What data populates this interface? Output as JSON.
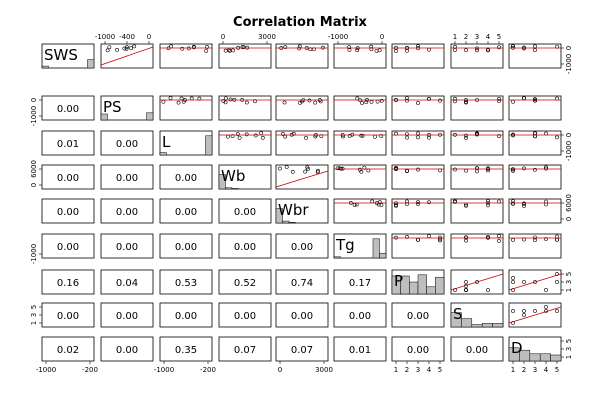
{
  "chart_data": {
    "type": "scatter",
    "title": "Correlation Matrix",
    "variables": [
      "SWS",
      "PS",
      "L",
      "Wb",
      "Wbr",
      "Tg",
      "P",
      "S",
      "D"
    ],
    "lower_panel": "correlation coefficients",
    "upper_panel": "scatterplots with red fitted line",
    "diagonal_panel": "histograms",
    "correlations": [
      [
        null,
        null,
        null,
        null,
        null,
        null,
        null,
        null,
        null
      ],
      [
        "0.00",
        null,
        null,
        null,
        null,
        null,
        null,
        null,
        null
      ],
      [
        "0.01",
        "0.00",
        null,
        null,
        null,
        null,
        null,
        null,
        null
      ],
      [
        "0.00",
        "0.00",
        "0.00",
        null,
        null,
        null,
        null,
        null,
        null
      ],
      [
        "0.00",
        "0.00",
        "0.00",
        "0.00",
        null,
        null,
        null,
        null,
        null
      ],
      [
        "0.00",
        "0.00",
        "0.00",
        "0.00",
        "0.00",
        null,
        null,
        null,
        null
      ],
      [
        "0.16",
        "0.04",
        "0.53",
        "0.52",
        "0.74",
        "0.17",
        null,
        null,
        null
      ],
      [
        "0.00",
        "0.00",
        "0.00",
        "0.00",
        "0.00",
        "0.00",
        "0.00",
        null,
        null
      ],
      [
        "0.02",
        "0.00",
        "0.35",
        "0.07",
        "0.07",
        "0.01",
        "0.00",
        "0.00",
        null
      ]
    ],
    "histograms": {
      "SWS": [
        0.08,
        0,
        0,
        0,
        0,
        0,
        0,
        0.35
      ],
      "PS": [
        0.25,
        0,
        0,
        0,
        0,
        0,
        0,
        0.3
      ],
      "L": [
        0.1,
        0,
        0,
        0,
        0,
        0,
        0,
        0.8
      ],
      "Wb": [
        0.6,
        0.05,
        0.02,
        0,
        0,
        0,
        0,
        0
      ],
      "Wbr": [
        0.6,
        0.08,
        0.03,
        0,
        0,
        0,
        0,
        0
      ],
      "Tg": [
        0.05,
        0,
        0,
        0,
        0,
        0,
        0.8,
        0.2
      ],
      "P": [
        0.75,
        0.75,
        0.5,
        0.8,
        0.3,
        0.7
      ],
      "S": [
        0.6,
        0.35,
        0.1,
        0.15,
        0.15
      ],
      "D": [
        0.55,
        0.45,
        0.3,
        0.3,
        0.25
      ]
    },
    "axes": {
      "top": [
        {
          "col": 1,
          "ticks": [
            "-1000",
            "-400",
            "0"
          ]
        },
        {
          "col": 3,
          "ticks": [
            "0",
            "3000"
          ]
        },
        {
          "col": 5,
          "ticks": [
            "-1000",
            "0"
          ]
        },
        {
          "col": 7,
          "ticks": [
            "1",
            "2",
            "3",
            "4",
            "5"
          ]
        }
      ],
      "bottom": [
        {
          "col": 0,
          "ticks": [
            "-1000",
            "-200"
          ]
        },
        {
          "col": 2,
          "ticks": [
            "-1000",
            "-200"
          ]
        },
        {
          "col": 4,
          "ticks": [
            "0",
            "3000"
          ]
        },
        {
          "col": 6,
          "ticks": [
            "1",
            "2",
            "3",
            "4",
            "5"
          ]
        },
        {
          "col": 8,
          "ticks": [
            "1",
            "2",
            "3",
            "4",
            "5"
          ]
        }
      ],
      "left": [
        {
          "row": 1,
          "ticks": [
            "-1000",
            "0"
          ]
        },
        {
          "row": 3,
          "ticks": [
            "0",
            "6000"
          ]
        },
        {
          "row": 5,
          "ticks": [
            "-1000"
          ]
        },
        {
          "row": 7,
          "ticks": [
            "1",
            "3",
            "5"
          ]
        }
      ],
      "right": [
        {
          "row": 0,
          "ticks": [
            "-1000",
            "0"
          ]
        },
        {
          "row": 2,
          "ticks": [
            "-1000",
            "0"
          ]
        },
        {
          "row": 4,
          "ticks": [
            "0",
            "6000"
          ]
        },
        {
          "row": 6,
          "ticks": [
            "1",
            "3",
            "5"
          ]
        },
        {
          "row": 8,
          "ticks": [
            "1",
            "3",
            "5"
          ]
        }
      ]
    }
  },
  "colors": {
    "panel_border": "#000000",
    "fit_line": "#cc0000",
    "points": "#000000",
    "histogram_fill": "#bebebe"
  }
}
